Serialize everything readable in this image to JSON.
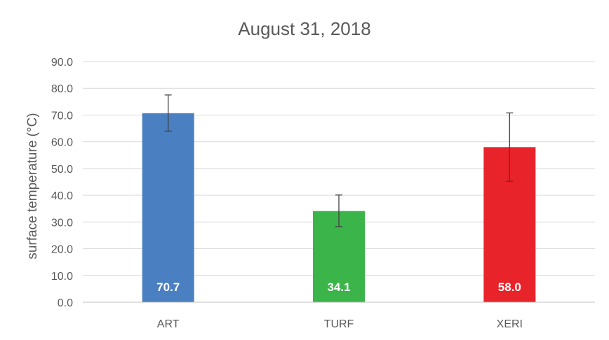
{
  "chart_data": {
    "type": "bar",
    "title": "August 31, 2018",
    "xlabel": "",
    "ylabel": "surface temperature (°C)",
    "ylim": [
      0,
      90
    ],
    "ytick_step": 10,
    "ytick_labels": [
      "0.0",
      "10.0",
      "20.0",
      "30.0",
      "40.0",
      "50.0",
      "60.0",
      "70.0",
      "80.0",
      "90.0"
    ],
    "categories": [
      "ART",
      "TURF",
      "XERI"
    ],
    "values": [
      70.7,
      34.1,
      58.0
    ],
    "value_labels": [
      "70.7",
      "34.1",
      "58.0"
    ],
    "error_low": [
      64.0,
      28.3,
      45.2
    ],
    "error_high": [
      77.5,
      40.1,
      70.8
    ],
    "colors": [
      "#4a7fc1",
      "#3bb44a",
      "#e8232a"
    ],
    "grid": true,
    "legend": "none"
  }
}
